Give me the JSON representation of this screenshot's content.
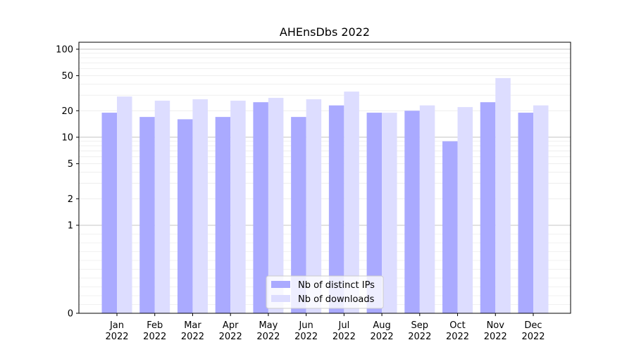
{
  "chart_data": {
    "type": "bar",
    "title": "AHEnsDbs 2022",
    "categories": [
      "Jan\n2022",
      "Feb\n2022",
      "Mar\n2022",
      "Apr\n2022",
      "May\n2022",
      "Jun\n2022",
      "Jul\n2022",
      "Aug\n2022",
      "Sep\n2022",
      "Oct\n2022",
      "Nov\n2022",
      "Dec\n2022"
    ],
    "series": [
      {
        "name": "Nb of distinct IPs",
        "color": "#aaaaff",
        "values": [
          19,
          17,
          16,
          17,
          25,
          17,
          23,
          19,
          20,
          9,
          25,
          19
        ]
      },
      {
        "name": "Nb of downloads",
        "color": "#ddddff",
        "values": [
          29,
          26,
          27,
          26,
          28,
          27,
          33,
          19,
          23,
          22,
          47,
          23
        ]
      }
    ],
    "yscale": "symlog",
    "ylim": [
      0,
      120
    ],
    "yticks": [
      0,
      1,
      2,
      5,
      10,
      20,
      50,
      100
    ],
    "legend_position": "lower center",
    "grid": true
  }
}
